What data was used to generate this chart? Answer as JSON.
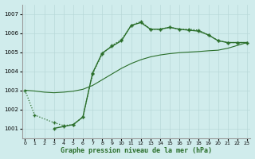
{
  "title": "Graphe pression niveau de la mer (hPa)",
  "background_color": "#d0ecec",
  "grid_color": "#b8d8d8",
  "line_color": "#2a6e2a",
  "xlim": [
    -0.3,
    23.3
  ],
  "ylim": [
    1000.5,
    1007.5
  ],
  "yticks": [
    1001,
    1002,
    1003,
    1004,
    1005,
    1006,
    1007
  ],
  "xticks": [
    0,
    1,
    2,
    3,
    4,
    5,
    6,
    7,
    8,
    9,
    10,
    11,
    12,
    13,
    14,
    15,
    16,
    17,
    18,
    19,
    20,
    21,
    22,
    23
  ],
  "series1_x": [
    0,
    1,
    3,
    4,
    5,
    6,
    7,
    8,
    9,
    10,
    11,
    12,
    13,
    14,
    15,
    16,
    17,
    18,
    19,
    20,
    21,
    22,
    23
  ],
  "series1_y": [
    1003.0,
    1001.7,
    1001.3,
    1001.15,
    1001.2,
    1001.6,
    1003.85,
    1004.9,
    1005.35,
    1005.65,
    1006.4,
    1006.6,
    1006.2,
    1006.2,
    1006.3,
    1006.2,
    1006.2,
    1006.15,
    1005.9,
    1005.6,
    1005.5,
    1005.5,
    1005.5
  ],
  "series2_x": [
    3,
    4,
    5,
    6,
    7,
    8,
    9,
    10,
    11,
    12,
    13,
    14,
    15,
    16,
    17,
    18,
    19,
    20,
    21,
    22,
    23
  ],
  "series2_y": [
    1001.0,
    1001.1,
    1001.2,
    1001.6,
    1003.9,
    1004.95,
    1005.3,
    1005.6,
    1006.4,
    1006.55,
    1006.2,
    1006.2,
    1006.3,
    1006.2,
    1006.15,
    1006.1,
    1005.9,
    1005.6,
    1005.5,
    1005.5,
    1005.5
  ],
  "series3_x": [
    0,
    1,
    2,
    3,
    4,
    5,
    6,
    7,
    8,
    9,
    10,
    11,
    12,
    13,
    14,
    15,
    16,
    17,
    18,
    19,
    20,
    21,
    22,
    23
  ],
  "series3_y": [
    1003.0,
    1002.96,
    1002.9,
    1002.87,
    1002.9,
    1002.95,
    1003.05,
    1003.25,
    1003.55,
    1003.85,
    1004.15,
    1004.4,
    1004.6,
    1004.75,
    1004.85,
    1004.92,
    1004.97,
    1005.0,
    1005.03,
    1005.07,
    1005.1,
    1005.2,
    1005.35,
    1005.5
  ]
}
